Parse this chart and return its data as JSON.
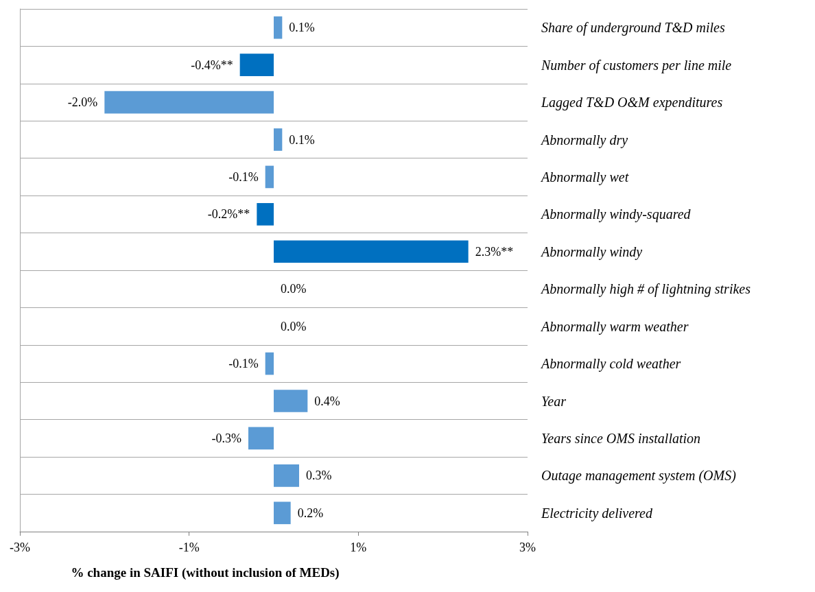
{
  "chart_data": {
    "type": "bar",
    "orientation": "horizontal",
    "xlabel": "% change in SAIFI (without inclusion of MEDs)",
    "categories": [
      "Share of underground T&D miles",
      "Number of customers per line mile",
      "Lagged T&D O&M expenditures",
      "Abnormally dry",
      "Abnormally wet",
      "Abnormally windy-squared",
      "Abnormally windy",
      "Abnormally high # of lightning strikes",
      "Abnormally warm weather",
      "Abnormally cold weather",
      "Year",
      "Years since OMS installation",
      "Outage management system (OMS)",
      "Electricity delivered"
    ],
    "values": [
      0.1,
      -0.4,
      -2.0,
      0.1,
      -0.1,
      -0.2,
      2.3,
      0.0,
      0.0,
      -0.1,
      0.4,
      -0.3,
      0.3,
      0.2
    ],
    "value_labels": [
      "0.1%",
      "-0.4%**",
      "-2.0%",
      "0.1%",
      "-0.1%",
      "-0.2%**",
      "2.3%**",
      "0.0%",
      "0.0%",
      "-0.1%",
      "0.4%",
      "-0.3%",
      "0.3%",
      "0.2%"
    ],
    "colors": [
      "#5b9bd5",
      "#0070c0",
      "#5b9bd5",
      "#5b9bd5",
      "#5b9bd5",
      "#0070c0",
      "#0070c0",
      "#5b9bd5",
      "#5b9bd5",
      "#5b9bd5",
      "#5b9bd5",
      "#5b9bd5",
      "#5b9bd5",
      "#5b9bd5"
    ],
    "xlim": [
      -3,
      3
    ],
    "xticks": [
      {
        "value": -3,
        "label": "-3%"
      },
      {
        "value": -1,
        "label": "-1%"
      },
      {
        "value": 1,
        "label": "1%"
      },
      {
        "value": 3,
        "label": "3%"
      }
    ],
    "grid": "y"
  }
}
